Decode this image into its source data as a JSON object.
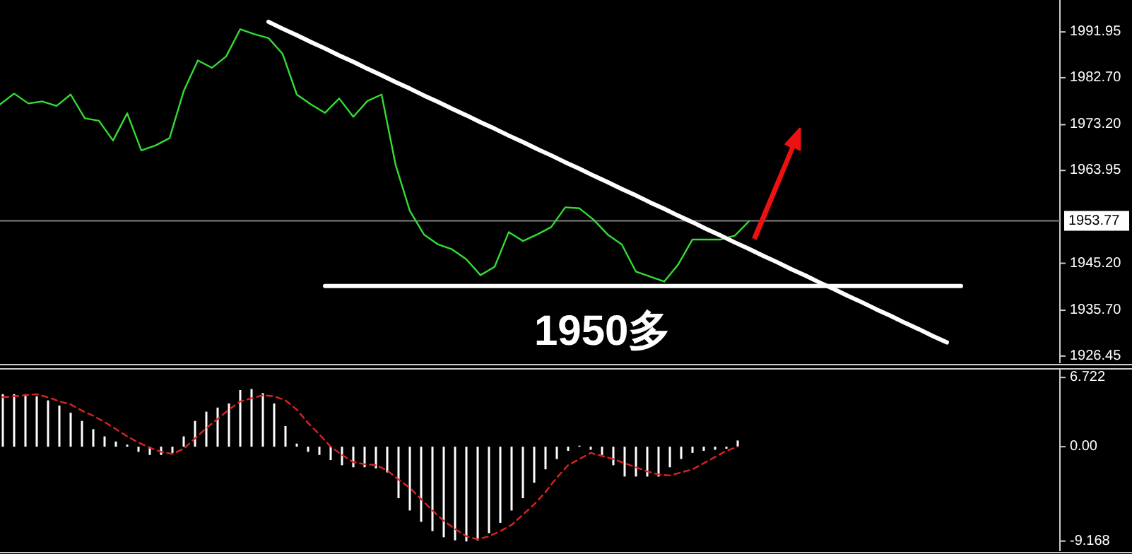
{
  "chart_data": [
    {
      "type": "line",
      "annotations": [
        "1950多"
      ],
      "tick_labels": "y",
      "ylim": [
        1925,
        1998.4
      ],
      "categories": [
        null,
        null,
        null,
        null,
        null,
        null,
        null,
        null,
        null,
        null,
        null,
        null,
        null,
        null,
        null,
        null,
        null,
        null,
        null,
        null,
        null,
        null,
        null,
        null,
        null,
        null,
        null,
        null,
        null,
        null,
        null,
        null,
        null,
        null,
        null,
        null,
        null,
        null,
        null,
        null,
        null,
        null,
        null,
        null,
        null,
        null,
        null,
        null,
        null,
        null,
        null,
        null,
        null,
        null,
        null,
        null,
        null,
        null,
        null,
        null,
        null,
        null,
        null,
        null,
        null,
        null,
        null,
        null,
        null,
        null,
        null,
        null,
        null,
        null,
        null,
        null
      ],
      "yticks": [
        {
          "value": 1991.95,
          "label": "1991.95"
        },
        {
          "value": 1982.7,
          "label": "1982.70"
        },
        {
          "value": 1973.2,
          "label": "1973.20"
        },
        {
          "value": 1963.95,
          "label": "1963.95"
        },
        {
          "value": 1945.2,
          "label": "1945.20"
        },
        {
          "value": 1935.7,
          "label": "1935.70"
        },
        {
          "value": 1926.45,
          "label": "1926.45"
        }
      ],
      "ref_lines": [
        {
          "axis": "y",
          "value": 1953.77,
          "label": "1953.77",
          "color": "#808080"
        }
      ],
      "series": [
        {
          "color": "#33dd33",
          "values": [
            1977.3,
            1979.5,
            1977.5,
            1977.9,
            1977.0,
            1979.3,
            1974.5,
            1974.0,
            1970.0,
            1975.5,
            1968.0,
            1969.0,
            1970.5,
            1980.0,
            1986.2,
            1984.7,
            1987.0,
            1992.5,
            1991.5,
            1990.7,
            1987.5,
            1979.3,
            1977.3,
            1975.6,
            1978.5,
            1974.8,
            1978.0,
            1979.3,
            1965.0,
            1955.8,
            1951.0,
            1949.0,
            1948.0,
            1946.0,
            1942.8,
            1944.5,
            1951.5,
            1949.7,
            1951.0,
            1952.5,
            1956.5,
            1956.3,
            1954.0,
            1951.0,
            1949.0,
            1943.5,
            1942.5,
            1941.5,
            1945.0,
            1950.0,
            1950.0,
            1950.0,
            1950.8,
            1953.7,
            null,
            null,
            null,
            null,
            null,
            null,
            null,
            null,
            null,
            null,
            null,
            null,
            null,
            null,
            null,
            null,
            null,
            null,
            null,
            null,
            null,
            null
          ]
        },
        {
          "color": "#ffffff",
          "values": [
            null,
            null,
            null,
            null,
            null,
            null,
            null,
            null,
            null,
            null,
            null,
            null,
            null,
            null,
            null,
            null,
            null,
            null,
            null,
            1994.0,
            1992.6,
            1991.3,
            1989.9,
            1988.6,
            1987.2,
            1985.9,
            1984.5,
            1983.2,
            1981.8,
            1980.5,
            1979.1,
            1977.8,
            1976.4,
            1975.1,
            1973.7,
            1972.4,
            1971.0,
            1969.7,
            1968.3,
            1967.0,
            1965.6,
            1964.3,
            1962.9,
            1961.6,
            1960.2,
            1958.9,
            1957.5,
            1956.2,
            1954.8,
            1953.5,
            1952.1,
            1950.8,
            1949.4,
            1948.1,
            1946.7,
            1945.4,
            1944.0,
            1942.7,
            1941.3,
            1940.0,
            1938.6,
            1937.3,
            1935.9,
            1934.6,
            1933.2,
            1931.9,
            1930.5,
            1929.2,
            null,
            null,
            null,
            null,
            null,
            null,
            null,
            null
          ]
        },
        {
          "color": "#ffffff",
          "values": [
            null,
            null,
            null,
            null,
            null,
            null,
            null,
            null,
            null,
            null,
            null,
            null,
            null,
            null,
            null,
            null,
            null,
            null,
            null,
            null,
            null,
            null,
            null,
            1940.6,
            1940.6,
            1940.6,
            1940.6,
            1940.6,
            1940.6,
            1940.6,
            1940.6,
            1940.6,
            1940.6,
            1940.6,
            1940.6,
            1940.6,
            1940.6,
            1940.6,
            1940.6,
            1940.6,
            1940.6,
            1940.6,
            1940.6,
            1940.6,
            1940.6,
            1940.6,
            1940.6,
            1940.6,
            1940.6,
            1940.6,
            1940.6,
            1940.6,
            1940.6,
            1940.6,
            1940.6,
            1940.6,
            1940.6,
            1940.6,
            1940.6,
            1940.6,
            1940.6,
            1940.6,
            1940.6,
            1940.6,
            1940.6,
            1940.6,
            1940.6,
            1940.6,
            1940.6,
            null,
            null,
            null,
            null,
            null,
            null,
            null
          ]
        }
      ]
    },
    {
      "type": "bar",
      "tick_labels": "y",
      "ylim": [
        -10.15,
        7.56
      ],
      "categories": [
        null,
        null,
        null,
        null,
        null,
        null,
        null,
        null,
        null,
        null,
        null,
        null,
        null,
        null,
        null,
        null,
        null,
        null,
        null,
        null,
        null,
        null,
        null,
        null,
        null,
        null,
        null,
        null,
        null,
        null,
        null,
        null,
        null,
        null,
        null,
        null,
        null,
        null,
        null,
        null,
        null,
        null,
        null,
        null,
        null,
        null,
        null,
        null,
        null,
        null,
        null,
        null,
        null,
        null,
        null,
        null,
        null,
        null,
        null,
        null,
        null,
        null,
        null,
        null,
        null,
        null
      ],
      "yticks": [
        {
          "value": 6.722,
          "label": "6.722"
        },
        {
          "value": 0,
          "label": "0.00"
        },
        {
          "value": -9.168,
          "label": "-9.168"
        }
      ],
      "series": [
        {
          "color": "#ffffff",
          "values": [
            5.1,
            5.1,
            5.1,
            4.9,
            4.5,
            4.0,
            3.3,
            2.5,
            1.7,
            1.0,
            0.5,
            0.2,
            -0.5,
            -0.8,
            -0.8,
            -0.6,
            1.0,
            2.5,
            3.4,
            3.8,
            4.2,
            5.5,
            5.6,
            5.2,
            4.2,
            2.0,
            0.3,
            -0.5,
            -0.8,
            -1.3,
            -1.8,
            -2.0,
            -2.0,
            -2.1,
            -2.5,
            -5.0,
            -6.2,
            -7.3,
            -8.2,
            -8.8,
            -9.1,
            -9.2,
            -9.1,
            -8.4,
            -7.4,
            -6.2,
            -5.0,
            -3.5,
            -2.2,
            -1.2,
            -0.4,
            0.1,
            -0.3,
            -0.8,
            -1.8,
            -2.9,
            -2.9,
            -2.9,
            -2.9,
            -2.0,
            -1.2,
            -0.6,
            -0.4,
            -0.3,
            -0.2,
            0.6
          ]
        },
        {
          "type": "line",
          "color": "#dd2222",
          "line_style": "dashed",
          "values": [
            4.8,
            4.9,
            5.0,
            5.1,
            4.8,
            4.4,
            4.1,
            3.5,
            3.0,
            2.4,
            1.7,
            1.0,
            0.4,
            -0.1,
            -0.5,
            -0.7,
            -0.2,
            0.8,
            1.8,
            2.7,
            3.6,
            4.4,
            4.7,
            5.0,
            4.9,
            4.5,
            3.6,
            2.3,
            1.2,
            0.0,
            -0.8,
            -1.5,
            -1.7,
            -1.8,
            -2.3,
            -3.2,
            -4.0,
            -5.1,
            -6.2,
            -7.2,
            -8.0,
            -8.7,
            -9.0,
            -8.7,
            -8.2,
            -7.6,
            -6.6,
            -5.6,
            -4.4,
            -3.0,
            -1.8,
            -1.2,
            -0.6,
            -0.9,
            -1.2,
            -1.6,
            -2.0,
            -2.4,
            -2.7,
            -2.8,
            -2.5,
            -2.2,
            -1.6,
            -1.0,
            -0.4,
            0.0
          ]
        }
      ]
    }
  ]
}
